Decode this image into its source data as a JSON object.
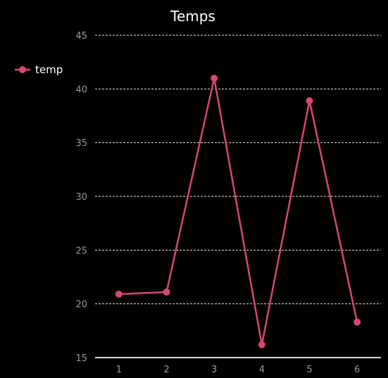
{
  "chart_data": {
    "type": "line",
    "title": "Temps",
    "xlabel": "",
    "ylabel": "",
    "x": [
      1,
      2,
      3,
      4,
      5,
      6
    ],
    "series": [
      {
        "name": "temp",
        "values": [
          20.9,
          21.1,
          41,
          16.2,
          38.9,
          18.3
        ],
        "color": "#d6457b"
      }
    ],
    "xlim": [
      0.5,
      6.5
    ],
    "ylim": [
      15,
      45
    ],
    "yticks": [
      15,
      20,
      25,
      30,
      35,
      40,
      45
    ],
    "xticks": [
      1,
      2,
      3,
      4,
      5,
      6
    ],
    "grid": true,
    "legend": "top-left"
  },
  "colors": {
    "background": "#000000",
    "text": "#ffffff",
    "tick": "#9a9a9a",
    "grid": "#e6e6e6"
  }
}
